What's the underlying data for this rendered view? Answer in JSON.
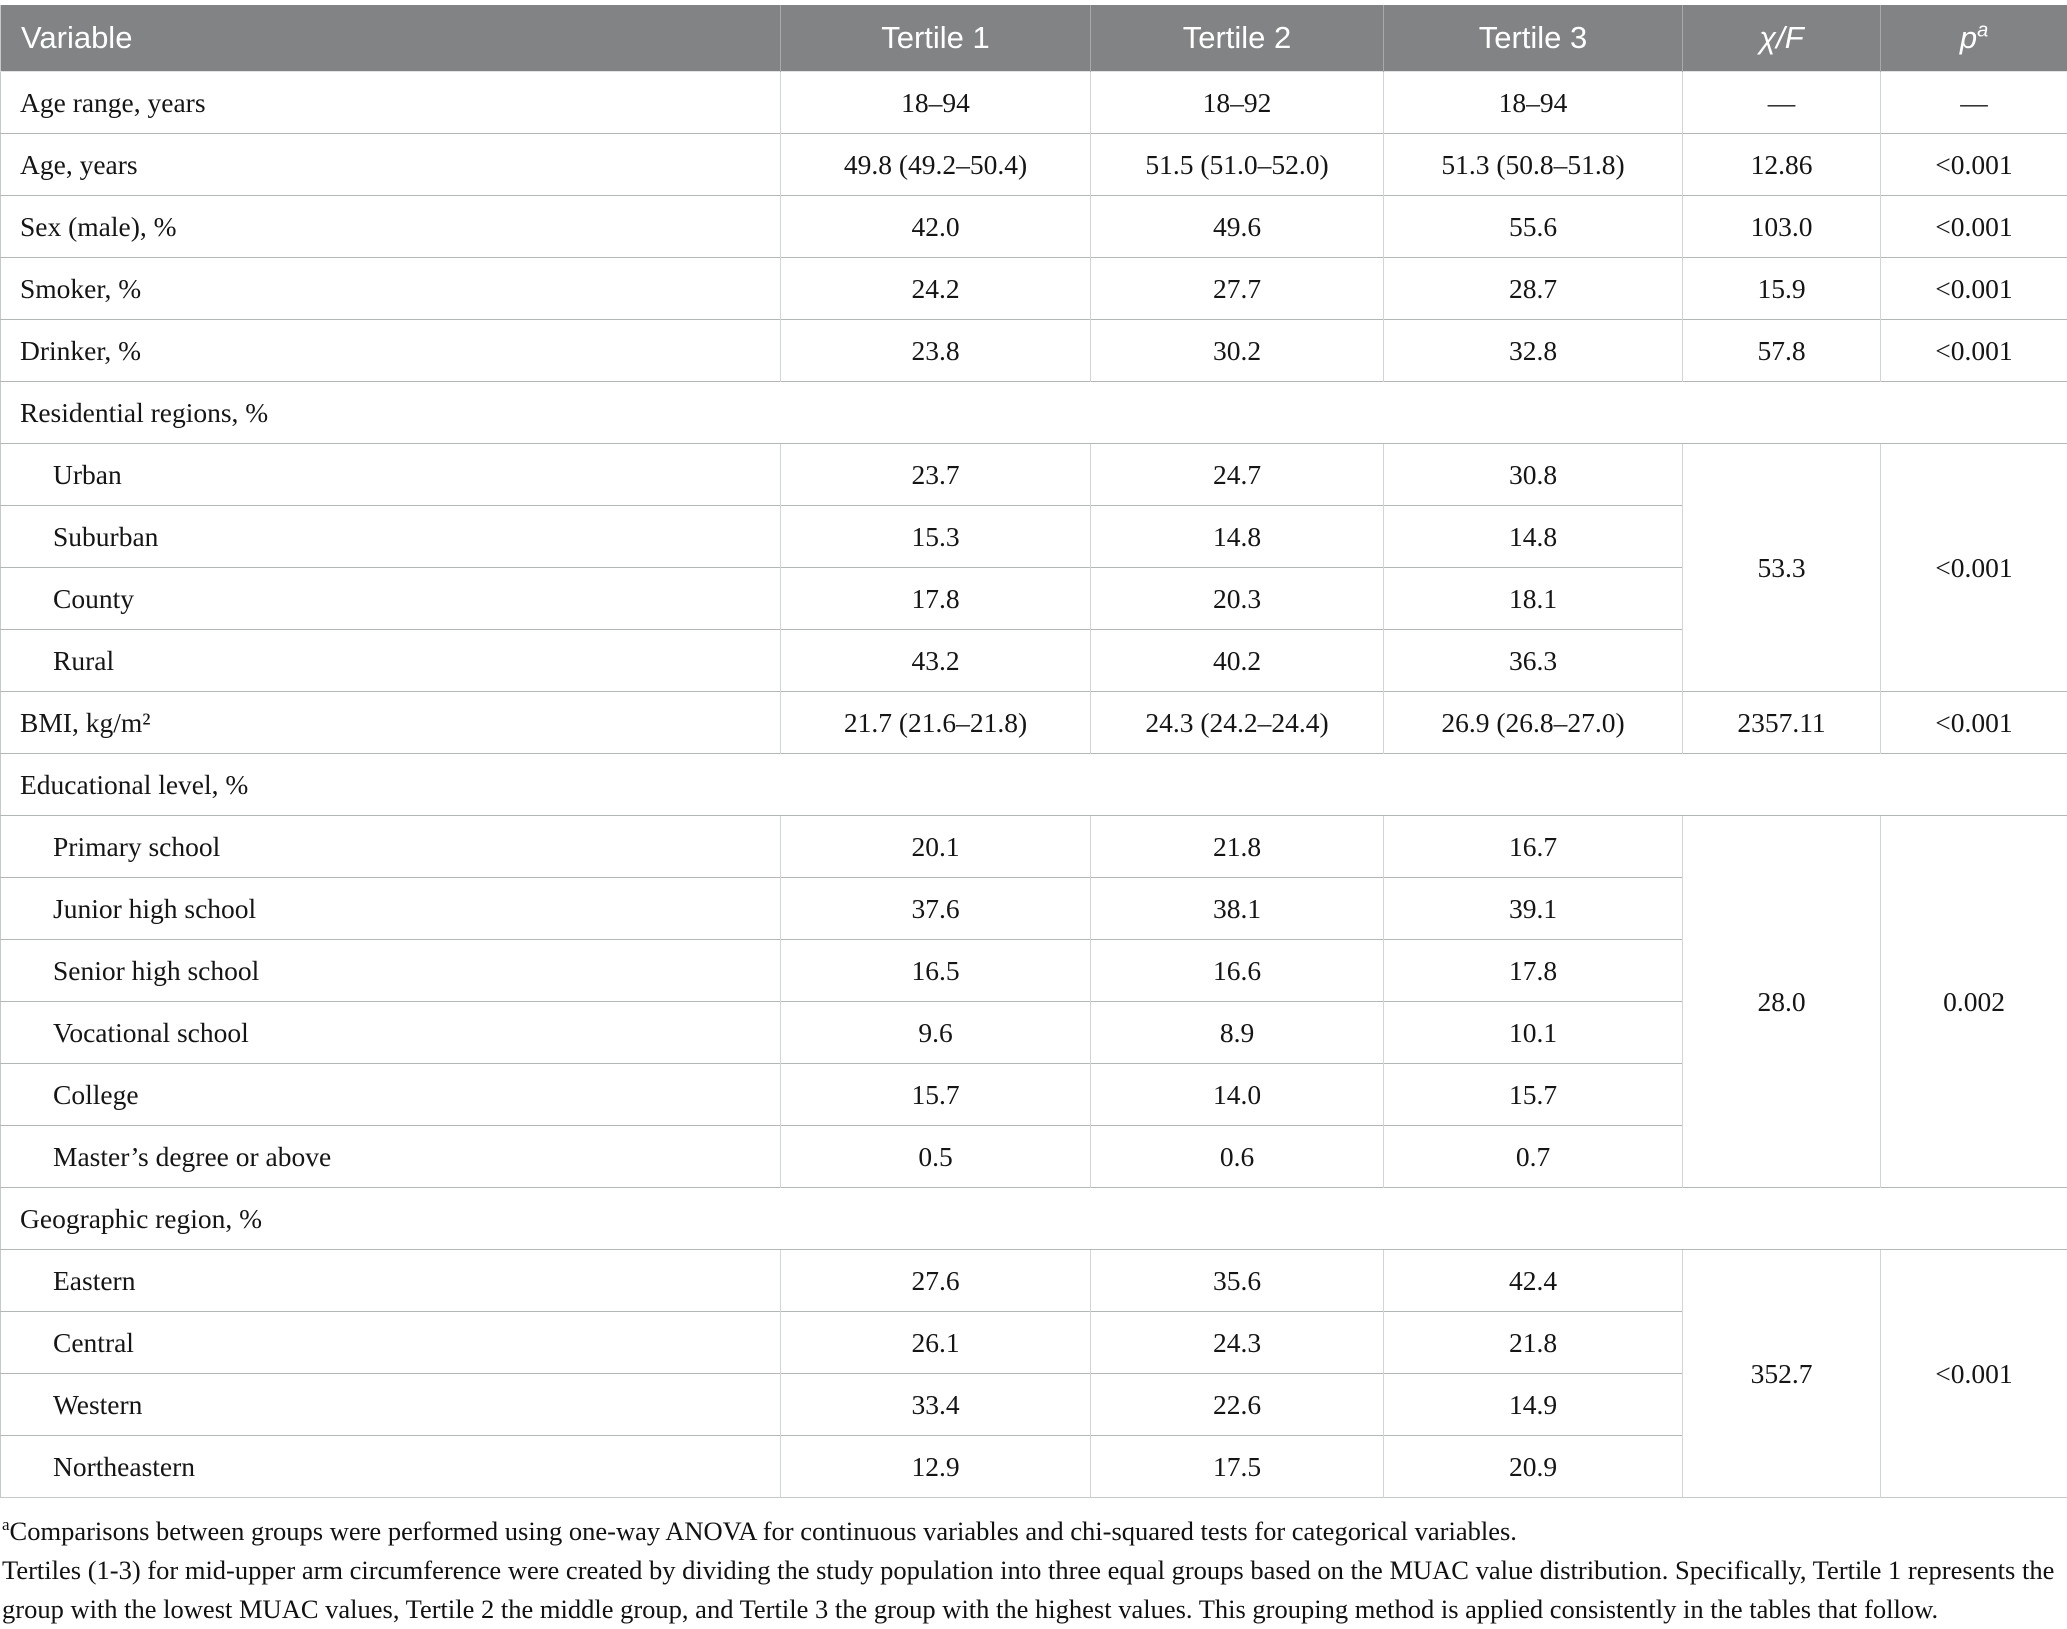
{
  "colors": {
    "header_bg": "#818385",
    "header_text": "#ffffff",
    "row_border": "#b4b7b7",
    "column_border": "#d2d5d5"
  },
  "table": {
    "header": {
      "variable": "Variable",
      "tertile1": "Tertile 1",
      "tertile2": "Tertile 2",
      "tertile3": "Tertile 3",
      "chi_f": "χ/F",
      "p": "p",
      "p_sup": "a"
    },
    "rows": [
      {
        "type": "data",
        "label": "Age range, years",
        "indent": false,
        "values": [
          "18–94",
          "18–92",
          "18–94"
        ],
        "chi": "—",
        "p": "—",
        "statRowspan": 1
      },
      {
        "type": "data",
        "label": "Age, years",
        "indent": false,
        "values": [
          "49.8 (49.2–50.4)",
          "51.5 (51.0–52.0)",
          "51.3 (50.8–51.8)"
        ],
        "chi": "12.86",
        "p": "<0.001",
        "statRowspan": 1
      },
      {
        "type": "data",
        "label": "Sex (male), %",
        "indent": false,
        "values": [
          "42.0",
          "49.6",
          "55.6"
        ],
        "chi": "103.0",
        "p": "<0.001",
        "statRowspan": 1
      },
      {
        "type": "data",
        "label": "Smoker, %",
        "indent": false,
        "values": [
          "24.2",
          "27.7",
          "28.7"
        ],
        "chi": "15.9",
        "p": "<0.001",
        "statRowspan": 1
      },
      {
        "type": "data",
        "label": "Drinker, %",
        "indent": false,
        "values": [
          "23.8",
          "30.2",
          "32.8"
        ],
        "chi": "57.8",
        "p": "<0.001",
        "statRowspan": 1
      },
      {
        "type": "section",
        "label": "Residential regions, %"
      },
      {
        "type": "data",
        "label": "Urban",
        "indent": true,
        "values": [
          "23.7",
          "24.7",
          "30.8"
        ],
        "chi": "53.3",
        "p": "<0.001",
        "statRowspan": 4
      },
      {
        "type": "data",
        "label": "Suburban",
        "indent": true,
        "values": [
          "15.3",
          "14.8",
          "14.8"
        ]
      },
      {
        "type": "data",
        "label": "County",
        "indent": true,
        "values": [
          "17.8",
          "20.3",
          "18.1"
        ]
      },
      {
        "type": "data",
        "label": "Rural",
        "indent": true,
        "values": [
          "43.2",
          "40.2",
          "36.3"
        ]
      },
      {
        "type": "data",
        "label": "BMI, kg/m²",
        "indent": false,
        "values": [
          "21.7 (21.6–21.8)",
          "24.3 (24.2–24.4)",
          "26.9 (26.8–27.0)"
        ],
        "chi": "2357.11",
        "p": "<0.001",
        "statRowspan": 1
      },
      {
        "type": "section",
        "label": "Educational level, %"
      },
      {
        "type": "data",
        "label": "Primary school",
        "indent": true,
        "values": [
          "20.1",
          "21.8",
          "16.7"
        ],
        "chi": "28.0",
        "p": "0.002",
        "statRowspan": 6
      },
      {
        "type": "data",
        "label": "Junior high school",
        "indent": true,
        "values": [
          "37.6",
          "38.1",
          "39.1"
        ]
      },
      {
        "type": "data",
        "label": "Senior high school",
        "indent": true,
        "values": [
          "16.5",
          "16.6",
          "17.8"
        ]
      },
      {
        "type": "data",
        "label": "Vocational school",
        "indent": true,
        "values": [
          "9.6",
          "8.9",
          "10.1"
        ]
      },
      {
        "type": "data",
        "label": "College",
        "indent": true,
        "values": [
          "15.7",
          "14.0",
          "15.7"
        ]
      },
      {
        "type": "data",
        "label": "Master’s degree or above",
        "indent": true,
        "values": [
          "0.5",
          "0.6",
          "0.7"
        ]
      },
      {
        "type": "section",
        "label": "Geographic region, %"
      },
      {
        "type": "data",
        "label": "Eastern",
        "indent": true,
        "values": [
          "27.6",
          "35.6",
          "42.4"
        ],
        "chi": "352.7",
        "p": "<0.001",
        "statRowspan": 4
      },
      {
        "type": "data",
        "label": "Central",
        "indent": true,
        "values": [
          "26.1",
          "24.3",
          "21.8"
        ]
      },
      {
        "type": "data",
        "label": "Western",
        "indent": true,
        "values": [
          "33.4",
          "22.6",
          "14.9"
        ]
      },
      {
        "type": "data",
        "label": "Northeastern",
        "indent": true,
        "values": [
          "12.9",
          "17.5",
          "20.9"
        ]
      }
    ]
  },
  "footnotes": {
    "sup": "a",
    "line1": "Comparisons between groups were performed using one-way ANOVA for continuous variables and chi-squared tests for categorical variables.",
    "line2": "Tertiles (1-3) for mid-upper arm circumference were created by dividing the study population into three equal groups based on the MUAC value distribution. Specifically, Tertile 1 represents the group with the lowest MUAC values, Tertile 2 the middle group, and Tertile 3 the group with the highest values. This grouping method is applied consistently in the tables that follow."
  }
}
